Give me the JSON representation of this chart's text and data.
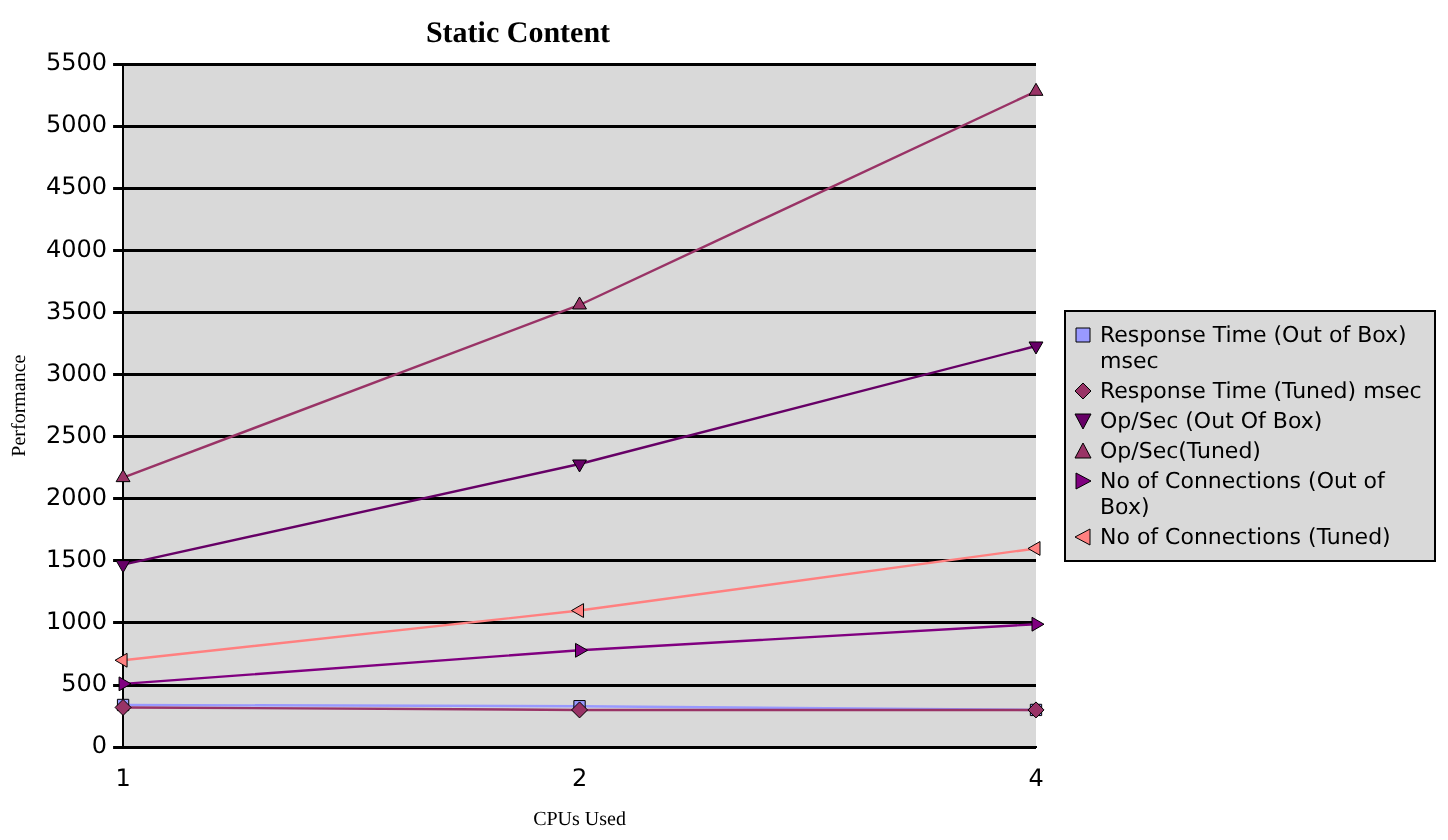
{
  "chart_data": {
    "type": "line",
    "title": "Static Content",
    "xlabel": "CPUs Used",
    "ylabel": "Performance",
    "categories": [
      "1",
      "2",
      "4"
    ],
    "ylim": [
      0,
      5500
    ],
    "yticks": [
      0,
      500,
      1000,
      1500,
      2000,
      2500,
      3000,
      3500,
      4000,
      4500,
      5000,
      5500
    ],
    "grid": "y",
    "legend": "right",
    "line_style": "solid",
    "series": [
      {
        "name": "Response Time (Out of Box) msec",
        "color": "#9999ff",
        "marker": "square",
        "values": [
          340,
          330,
          300
        ]
      },
      {
        "name": "Response Time (Tuned) msec",
        "color": "#993366",
        "marker": "diamond",
        "values": [
          320,
          300,
          300
        ]
      },
      {
        "name": "Op/Sec (Out Of Box)",
        "color": "#660066",
        "marker": "triangle-down",
        "values": [
          1470,
          2280,
          3230
        ]
      },
      {
        "name": "Op/Sec(Tuned)",
        "color": "#993366",
        "marker": "triangle",
        "values": [
          2170,
          3560,
          5280
        ]
      },
      {
        "name": "No of Connections (Out of Box)",
        "color": "#800080",
        "marker": "triangle-right",
        "values": [
          510,
          780,
          990
        ]
      },
      {
        "name": "No of Connections (Tuned)",
        "color": "#ff8080",
        "marker": "triangle-left",
        "values": [
          700,
          1100,
          1600
        ]
      }
    ]
  }
}
